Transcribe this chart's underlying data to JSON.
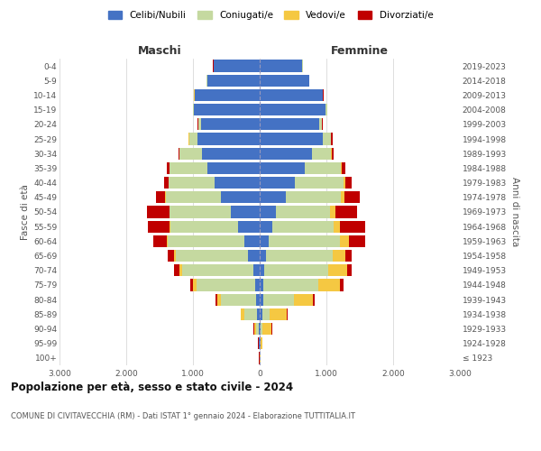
{
  "age_groups": [
    "100+",
    "95-99",
    "90-94",
    "85-89",
    "80-84",
    "75-79",
    "70-74",
    "65-69",
    "60-64",
    "55-59",
    "50-54",
    "45-49",
    "40-44",
    "35-39",
    "30-34",
    "25-29",
    "20-24",
    "15-19",
    "10-14",
    "5-9",
    "0-4"
  ],
  "birth_years": [
    "≤ 1923",
    "1924-1928",
    "1929-1933",
    "1934-1938",
    "1939-1943",
    "1944-1948",
    "1949-1953",
    "1954-1958",
    "1959-1963",
    "1964-1968",
    "1969-1973",
    "1974-1978",
    "1979-1983",
    "1984-1988",
    "1989-1993",
    "1994-1998",
    "1999-2003",
    "2004-2008",
    "2009-2013",
    "2014-2018",
    "2019-2023"
  ],
  "male_celibi": [
    3,
    8,
    15,
    35,
    55,
    70,
    100,
    180,
    230,
    320,
    430,
    580,
    680,
    780,
    870,
    930,
    880,
    980,
    970,
    790,
    690
  ],
  "male_coniugati": [
    2,
    8,
    45,
    190,
    530,
    870,
    1060,
    1080,
    1150,
    1020,
    920,
    830,
    680,
    570,
    330,
    130,
    40,
    20,
    8,
    4,
    3
  ],
  "male_vedovi": [
    1,
    4,
    25,
    55,
    55,
    55,
    45,
    28,
    18,
    10,
    5,
    3,
    2,
    2,
    2,
    2,
    2,
    2,
    2,
    2,
    2
  ],
  "male_divorziati": [
    1,
    2,
    4,
    10,
    18,
    45,
    75,
    85,
    190,
    330,
    330,
    140,
    75,
    38,
    18,
    8,
    4,
    3,
    2,
    2,
    2
  ],
  "female_celibi": [
    3,
    8,
    15,
    35,
    50,
    55,
    70,
    90,
    140,
    190,
    240,
    390,
    530,
    680,
    790,
    940,
    890,
    990,
    940,
    740,
    640
  ],
  "female_coniugati": [
    1,
    4,
    25,
    110,
    470,
    820,
    960,
    1010,
    1060,
    920,
    820,
    830,
    730,
    530,
    280,
    130,
    40,
    18,
    8,
    4,
    3
  ],
  "female_vedovi": [
    5,
    28,
    140,
    260,
    280,
    330,
    280,
    190,
    140,
    95,
    75,
    45,
    28,
    14,
    9,
    4,
    4,
    2,
    2,
    2,
    2
  ],
  "female_divorziati": [
    1,
    2,
    4,
    14,
    18,
    45,
    75,
    95,
    240,
    380,
    330,
    240,
    95,
    55,
    28,
    18,
    9,
    4,
    4,
    3,
    3
  ],
  "colors": {
    "celibi": "#4472c4",
    "coniugati": "#c5d9a0",
    "vedovi": "#f5c842",
    "divorziati": "#c00000"
  },
  "title": "Popolazione per età, sesso e stato civile - 2024",
  "subtitle": "COMUNE DI CIVITAVECCHIA (RM) - Dati ISTAT 1° gennaio 2024 - Elaborazione TUTTITALIA.IT",
  "xlabel_left": "Maschi",
  "xlabel_right": "Femmine",
  "ylabel_left": "Fasce di età",
  "ylabel_right": "Anni di nascita",
  "xlim": 3000,
  "background_color": "#ffffff",
  "grid_color": "#d0d0d0"
}
